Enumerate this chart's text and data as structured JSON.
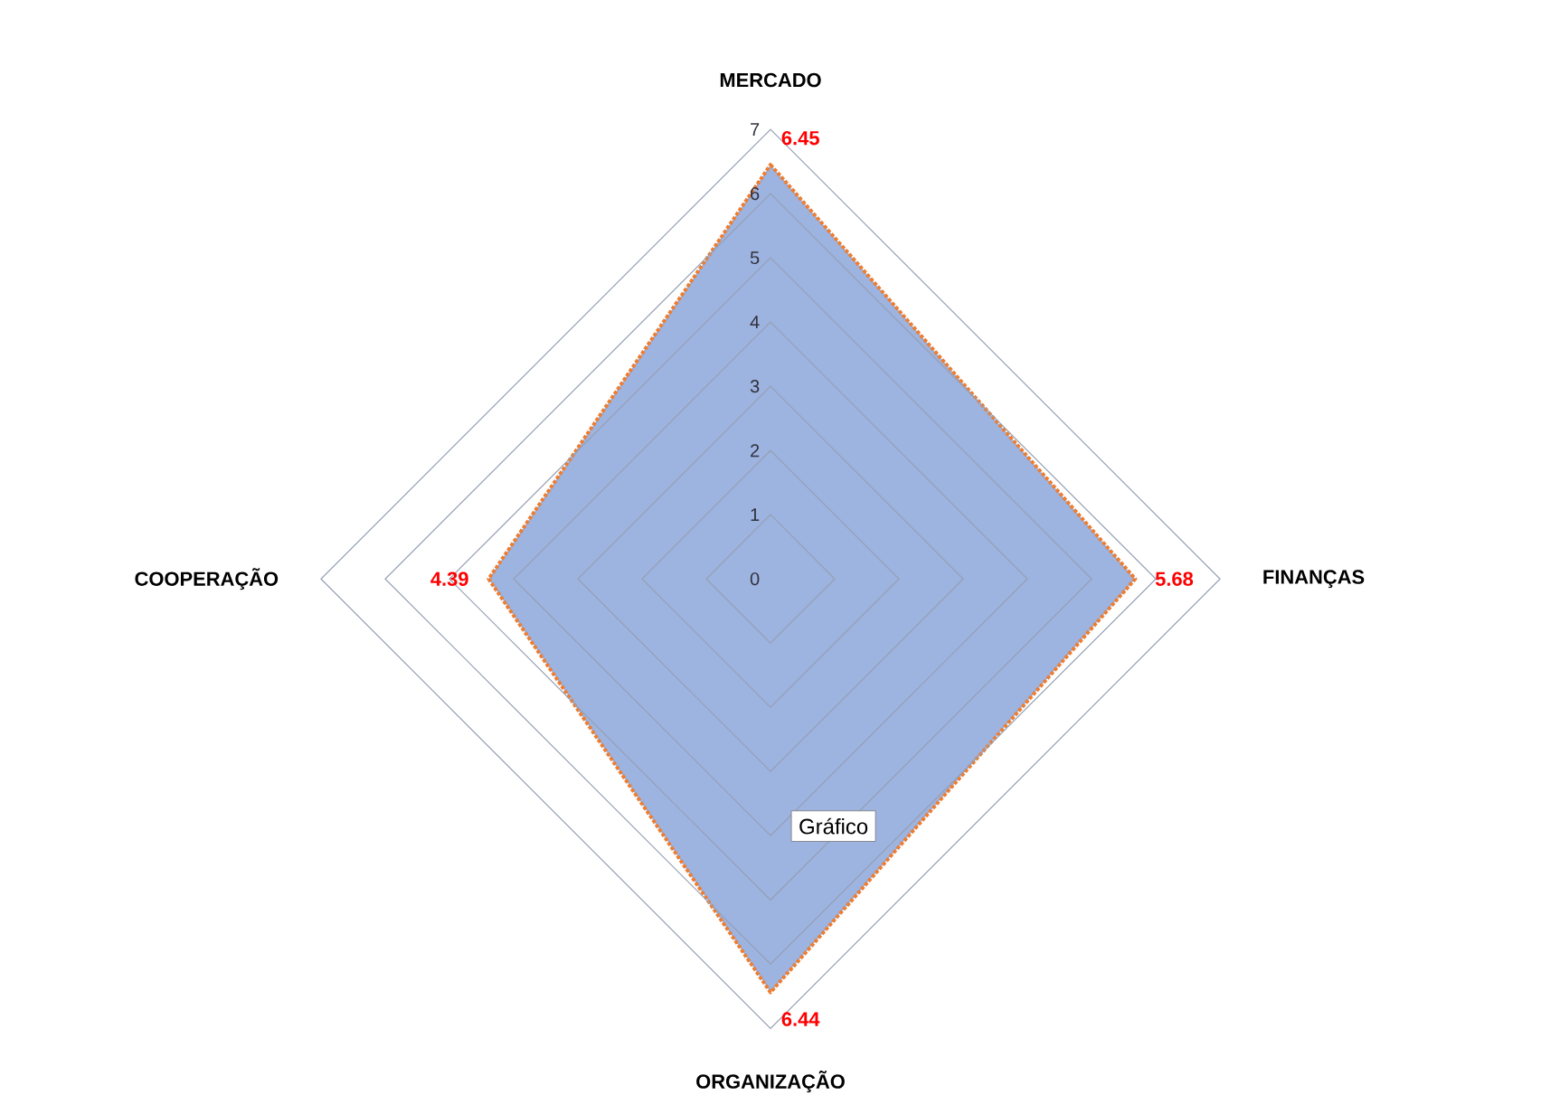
{
  "chart_data": {
    "type": "radar",
    "categories": [
      "MERCADO",
      "FINANÇAS",
      "ORGANIZAÇÃO",
      "COOPERAÇÃO"
    ],
    "series": [
      {
        "color": "#9db3e0",
        "values": [
          6.45,
          5.68,
          6.44,
          4.39
        ]
      }
    ],
    "ylim": [
      0,
      7
    ],
    "yticks": [
      {
        "value": 0,
        "label": "0"
      },
      {
        "value": 1,
        "label": "1"
      },
      {
        "value": 2,
        "label": "2"
      },
      {
        "value": 3,
        "label": "3"
      },
      {
        "value": 4,
        "label": "4"
      },
      {
        "value": 5,
        "label": "5"
      },
      {
        "value": 6,
        "label": "6"
      },
      {
        "value": 7,
        "label": "7"
      }
    ],
    "grid": true,
    "data_labels": true,
    "line_style": "dotted",
    "marker": "none",
    "annotations": [
      "Gráfico"
    ]
  }
}
